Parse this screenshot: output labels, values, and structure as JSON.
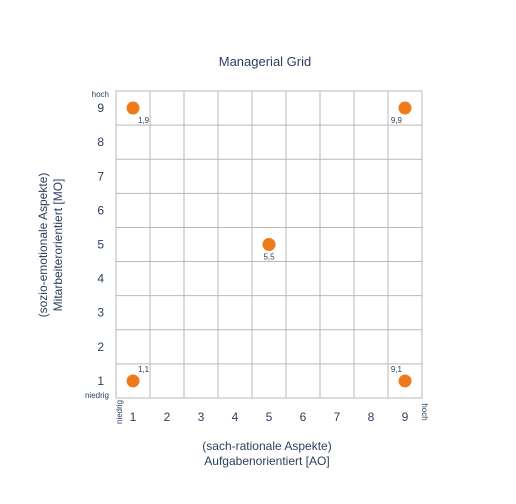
{
  "chart_data": {
    "type": "scatter",
    "title": "Managerial Grid",
    "xlabel_line1": "(sach-rationale Aspekte)",
    "xlabel_line2": "Aufgabenorientiert [AO]",
    "ylabel_line1": "(sozio-emotionale Aspekte)",
    "ylabel_line2": "Mitarbeiterorientiert [MO]",
    "xlim": [
      0.5,
      9.5
    ],
    "ylim": [
      0.5,
      9.5
    ],
    "x_ticks": [
      1,
      2,
      3,
      4,
      5,
      6,
      7,
      8,
      9
    ],
    "y_ticks": [
      1,
      2,
      3,
      4,
      5,
      6,
      7,
      8,
      9
    ],
    "grid": true,
    "x_low_label": "niedrig",
    "x_high_label": "hoch",
    "y_low_label": "niedrig",
    "y_high_label": "hoch",
    "marker_color": "#ef7a1a",
    "grid_color": "#b9b9b9",
    "points": [
      {
        "x": 1,
        "y": 9,
        "label": "1,9"
      },
      {
        "x": 9,
        "y": 9,
        "label": "9,9"
      },
      {
        "x": 5,
        "y": 5,
        "label": "5,5"
      },
      {
        "x": 1,
        "y": 1,
        "label": "1,1"
      },
      {
        "x": 9,
        "y": 1,
        "label": "9,1"
      }
    ]
  }
}
